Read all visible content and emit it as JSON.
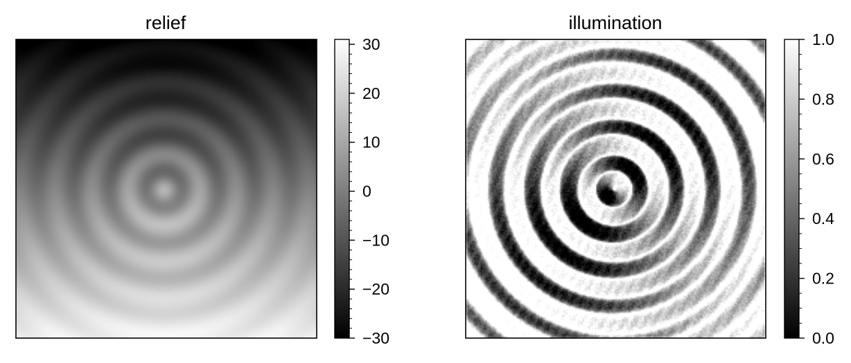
{
  "chart_data": [
    {
      "type": "heatmap",
      "title": "relief",
      "colormap": "gray",
      "grid": false,
      "axes_ticks": false,
      "colorbar": {
        "range": [
          -30,
          31
        ],
        "ticks": [
          30,
          20,
          10,
          0,
          -10,
          -20,
          -30
        ],
        "tick_labels": [
          "30",
          "20",
          "10",
          "0",
          "−10",
          "−20",
          "−30"
        ],
        "minor_tick_step": 2
      },
      "description_data": {
        "surface": "concentric ripples around center superimposed on a linear north-south slope",
        "slope_top_value": -30,
        "slope_bottom_value": 28,
        "ripple_center_value": 10,
        "ripple_amplitude": 8
      }
    },
    {
      "type": "heatmap",
      "title": "illumination",
      "colormap": "gray",
      "grid": false,
      "axes_ticks": false,
      "colorbar": {
        "range": [
          0.0,
          1.0
        ],
        "ticks": [
          1.0,
          0.8,
          0.6,
          0.4,
          0.2,
          0.0
        ],
        "tick_labels": [
          "1.0",
          "0.8",
          "0.6",
          "0.4",
          "0.2",
          "0.0"
        ],
        "minor_tick_step": 0.05
      }
    }
  ]
}
